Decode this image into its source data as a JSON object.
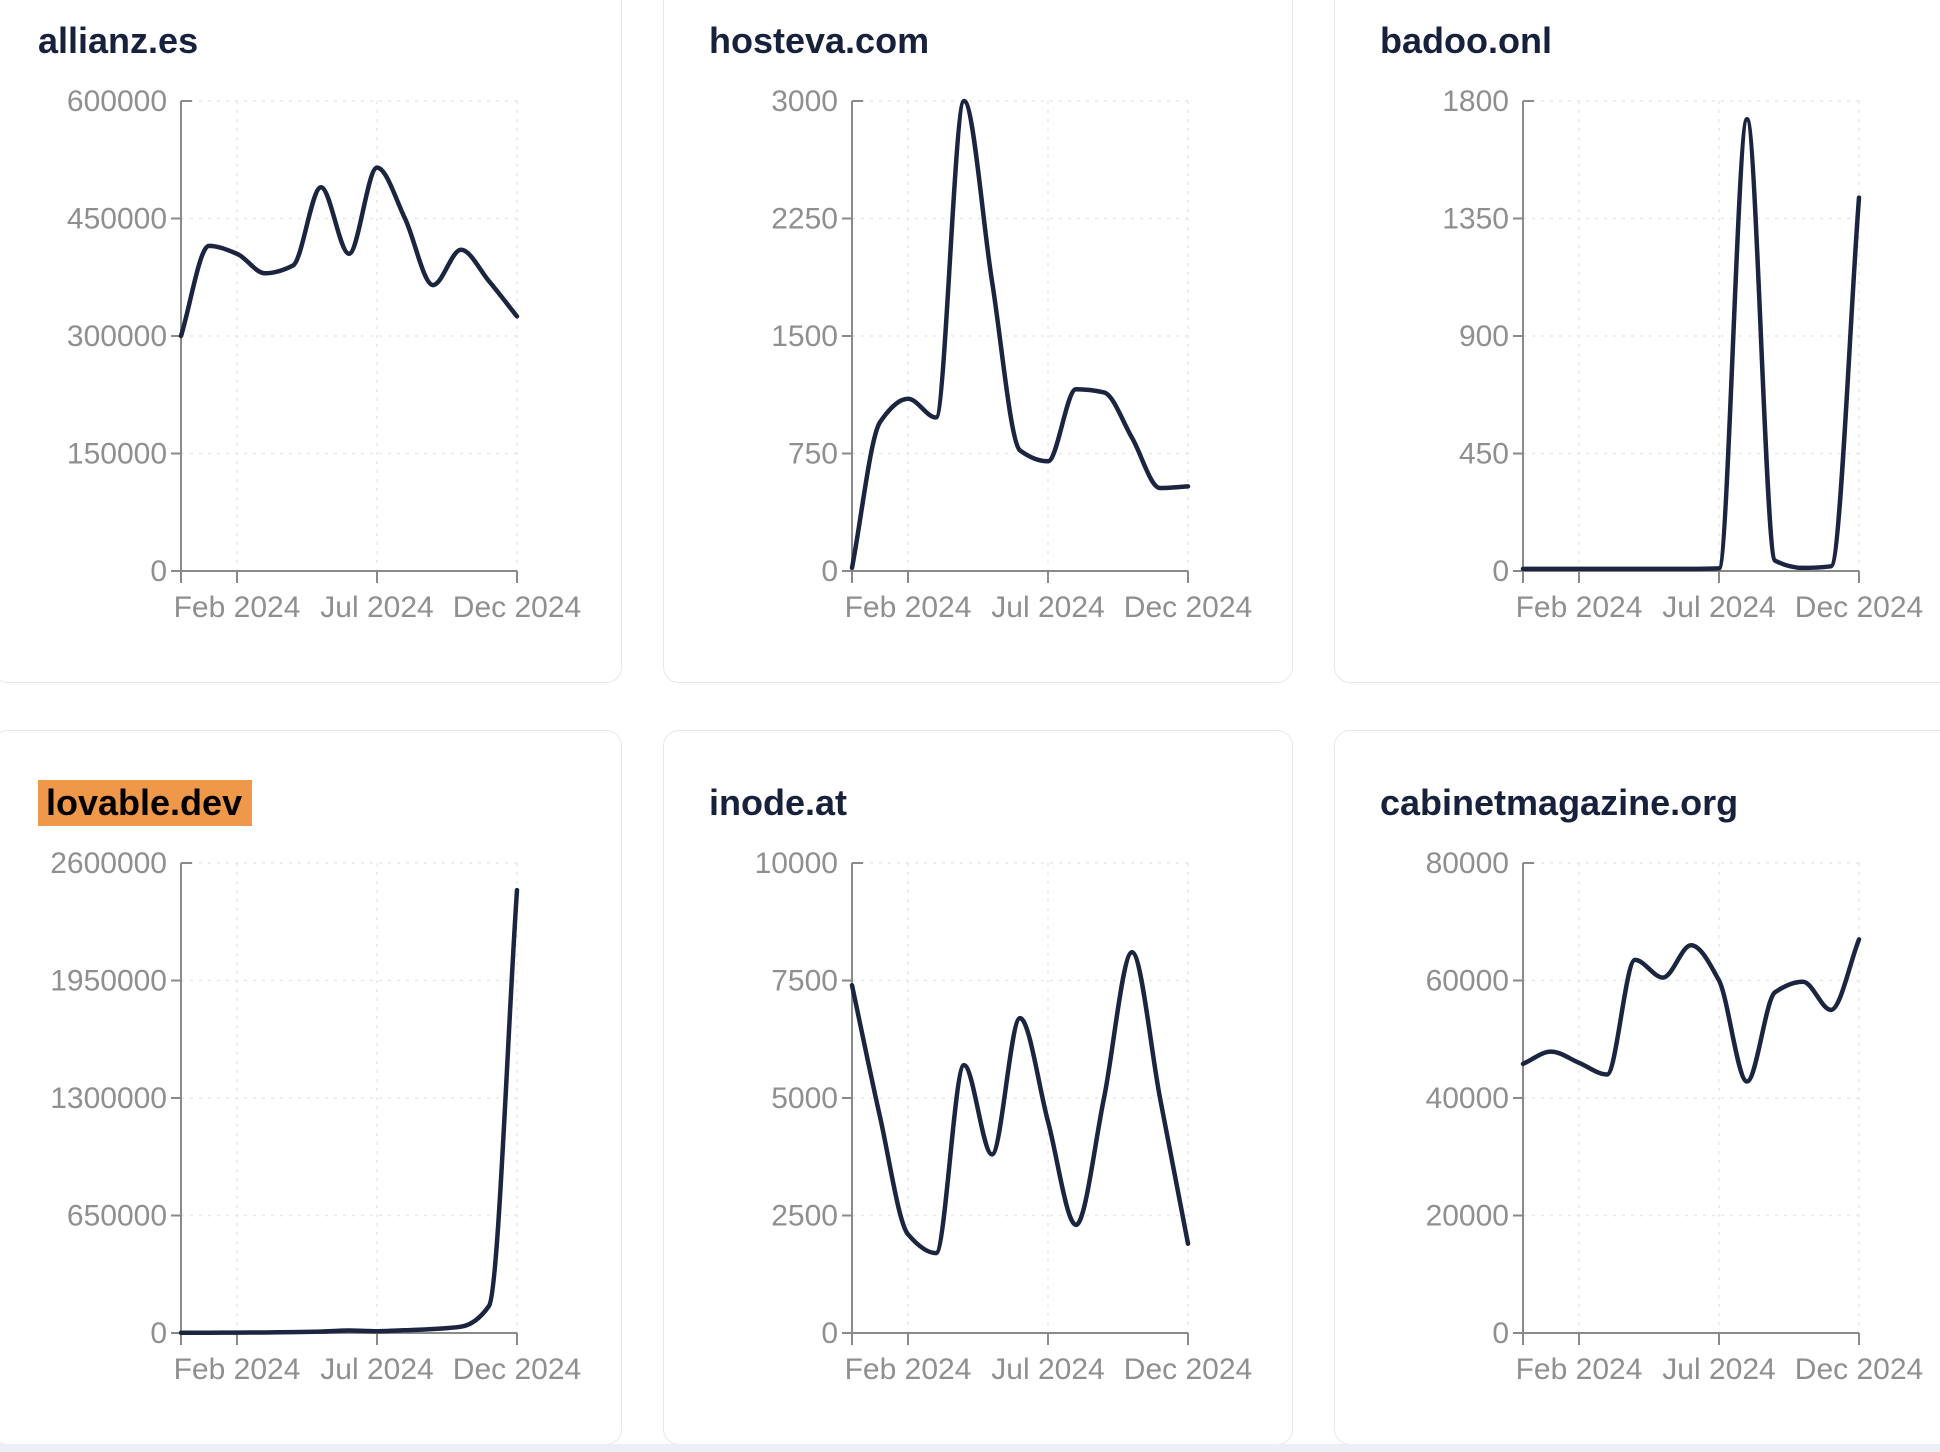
{
  "style": {
    "line_color": "#1c2540",
    "title_color": "#17213b",
    "axis_color": "#8a8a8a",
    "tick_label_color": "#8f8f8f",
    "grid_color": "#e8e8ec",
    "card_border_color": "#e7e8ec",
    "card_background": "#ffffff",
    "page_background": "#ffffff",
    "highlight_color": "#f0984a",
    "highlight_text_color": "#000000",
    "bottom_strip_color": "#ecf0f6"
  },
  "chart_data": [
    {
      "type": "line",
      "title": "allianz.es",
      "title_highlighted": false,
      "x_labels": [
        "2023-12",
        "2024-01",
        "2024-02",
        "2024-03",
        "2024-04",
        "2024-05",
        "2024-06",
        "2024-07",
        "2024-08",
        "2024-09",
        "2024-10",
        "2024-11",
        "2024-12"
      ],
      "values": [
        300000,
        415000,
        405000,
        380000,
        390000,
        490000,
        405000,
        515000,
        450000,
        365000,
        410000,
        370000,
        325000
      ],
      "ylim": [
        0,
        600000
      ],
      "y_tick_labels": [
        "600000",
        "450000",
        "300000",
        "150000",
        "0"
      ],
      "x_tick_labels": [
        "Feb 2024",
        "Jul 2024",
        "Dec 2024"
      ],
      "x_tick_indices": [
        2,
        7,
        12
      ],
      "grid": "dashed",
      "legend": false
    },
    {
      "type": "line",
      "title": "hosteva.com",
      "title_highlighted": false,
      "x_labels": [
        "2023-12",
        "2024-01",
        "2024-02",
        "2024-03",
        "2024-04",
        "2024-05",
        "2024-06",
        "2024-07",
        "2024-08",
        "2024-09",
        "2024-10",
        "2024-11",
        "2024-12"
      ],
      "values": [
        20,
        950,
        1100,
        980,
        3000,
        1850,
        770,
        700,
        1160,
        1140,
        850,
        530,
        540
      ],
      "ylim": [
        0,
        3000
      ],
      "y_tick_labels": [
        "3000",
        "2250",
        "1500",
        "750",
        "0"
      ],
      "x_tick_labels": [
        "Feb 2024",
        "Jul 2024",
        "Dec 2024"
      ],
      "x_tick_indices": [
        2,
        7,
        12
      ],
      "grid": "dashed",
      "legend": false
    },
    {
      "type": "line",
      "title": "badoo.onl",
      "title_highlighted": false,
      "x_labels": [
        "2023-12",
        "2024-01",
        "2024-02",
        "2024-03",
        "2024-04",
        "2024-05",
        "2024-06",
        "2024-07",
        "2024-08",
        "2024-09",
        "2024-10",
        "2024-11",
        "2024-12"
      ],
      "values": [
        8,
        8,
        8,
        8,
        8,
        8,
        8,
        10,
        1730,
        40,
        12,
        18,
        1430
      ],
      "ylim": [
        0,
        1800
      ],
      "y_tick_labels": [
        "1800",
        "1350",
        "900",
        "450",
        "0"
      ],
      "x_tick_labels": [
        "Feb 2024",
        "Jul 2024",
        "Dec 2024"
      ],
      "x_tick_indices": [
        2,
        7,
        12
      ],
      "grid": "dashed",
      "legend": false
    },
    {
      "type": "line",
      "title": "lovable.dev",
      "title_highlighted": true,
      "x_labels": [
        "2023-12",
        "2024-01",
        "2024-02",
        "2024-03",
        "2024-04",
        "2024-05",
        "2024-06",
        "2024-07",
        "2024-08",
        "2024-09",
        "2024-10",
        "2024-11",
        "2024-12"
      ],
      "values": [
        1000,
        1500,
        2000,
        3000,
        5000,
        8000,
        14000,
        10000,
        15000,
        22000,
        35000,
        150000,
        2450000
      ],
      "ylim": [
        0,
        2600000
      ],
      "y_tick_labels": [
        "2600000",
        "1950000",
        "1300000",
        "650000",
        "0"
      ],
      "x_tick_labels": [
        "Feb 2024",
        "Jul 2024",
        "Dec 2024"
      ],
      "x_tick_indices": [
        2,
        7,
        12
      ],
      "grid": "dashed",
      "legend": false
    },
    {
      "type": "line",
      "title": "inode.at",
      "title_highlighted": false,
      "x_labels": [
        "2023-12",
        "2024-01",
        "2024-02",
        "2024-03",
        "2024-04",
        "2024-05",
        "2024-06",
        "2024-07",
        "2024-08",
        "2024-09",
        "2024-10",
        "2024-11",
        "2024-12"
      ],
      "values": [
        7400,
        4600,
        2100,
        1700,
        5700,
        3800,
        6700,
        4500,
        2300,
        5000,
        8100,
        5000,
        1900
      ],
      "ylim": [
        0,
        10000
      ],
      "y_tick_labels": [
        "10000",
        "7500",
        "5000",
        "2500",
        "0"
      ],
      "x_tick_labels": [
        "Feb 2024",
        "Jul 2024",
        "Dec 2024"
      ],
      "x_tick_indices": [
        2,
        7,
        12
      ],
      "grid": "dashed",
      "legend": false
    },
    {
      "type": "line",
      "title": "cabinetmagazine.org",
      "title_highlighted": false,
      "x_labels": [
        "2023-12",
        "2024-01",
        "2024-02",
        "2024-03",
        "2024-04",
        "2024-05",
        "2024-06",
        "2024-07",
        "2024-08",
        "2024-09",
        "2024-10",
        "2024-11",
        "2024-12"
      ],
      "values": [
        45800,
        47900,
        46000,
        44000,
        63500,
        60500,
        66000,
        60000,
        42800,
        58000,
        59800,
        55000,
        67000
      ],
      "ylim": [
        0,
        80000
      ],
      "y_tick_labels": [
        "80000",
        "60000",
        "40000",
        "20000",
        "0"
      ],
      "x_tick_labels": [
        "Feb 2024",
        "Jul 2024",
        "Dec 2024"
      ],
      "x_tick_indices": [
        2,
        7,
        12
      ],
      "grid": "dashed",
      "legend": false
    }
  ]
}
